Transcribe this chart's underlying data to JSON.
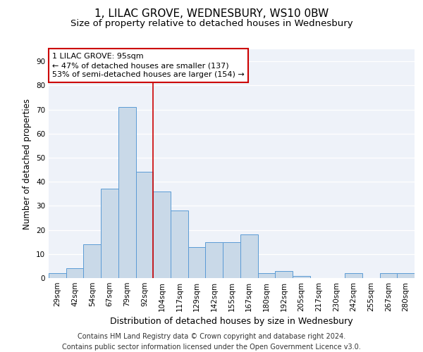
{
  "title": "1, LILAC GROVE, WEDNESBURY, WS10 0BW",
  "subtitle": "Size of property relative to detached houses in Wednesbury",
  "xlabel": "Distribution of detached houses by size in Wednesbury",
  "ylabel": "Number of detached properties",
  "categories": [
    "29sqm",
    "42sqm",
    "54sqm",
    "67sqm",
    "79sqm",
    "92sqm",
    "104sqm",
    "117sqm",
    "129sqm",
    "142sqm",
    "155sqm",
    "167sqm",
    "180sqm",
    "192sqm",
    "205sqm",
    "217sqm",
    "230sqm",
    "242sqm",
    "255sqm",
    "267sqm",
    "280sqm"
  ],
  "values": [
    2,
    4,
    14,
    37,
    71,
    44,
    36,
    28,
    13,
    15,
    15,
    18,
    2,
    3,
    1,
    0,
    0,
    2,
    0,
    2,
    2
  ],
  "bar_color": "#c9d9e8",
  "bar_edge_color": "#5b9bd5",
  "background_color": "#eef2f9",
  "grid_color": "#ffffff",
  "vline_x": 5.5,
  "vline_color": "#cc0000",
  "annotation_text": "1 LILAC GROVE: 95sqm\n← 47% of detached houses are smaller (137)\n53% of semi-detached houses are larger (154) →",
  "annotation_box_color": "#ffffff",
  "annotation_box_edge": "#cc0000",
  "ylim": [
    0,
    95
  ],
  "yticks": [
    0,
    10,
    20,
    30,
    40,
    50,
    60,
    70,
    80,
    90
  ],
  "footer": "Contains HM Land Registry data © Crown copyright and database right 2024.\nContains public sector information licensed under the Open Government Licence v3.0.",
  "title_fontsize": 11,
  "subtitle_fontsize": 9.5,
  "xlabel_fontsize": 9,
  "ylabel_fontsize": 8.5,
  "tick_fontsize": 7.5,
  "annotation_fontsize": 8,
  "footer_fontsize": 7
}
